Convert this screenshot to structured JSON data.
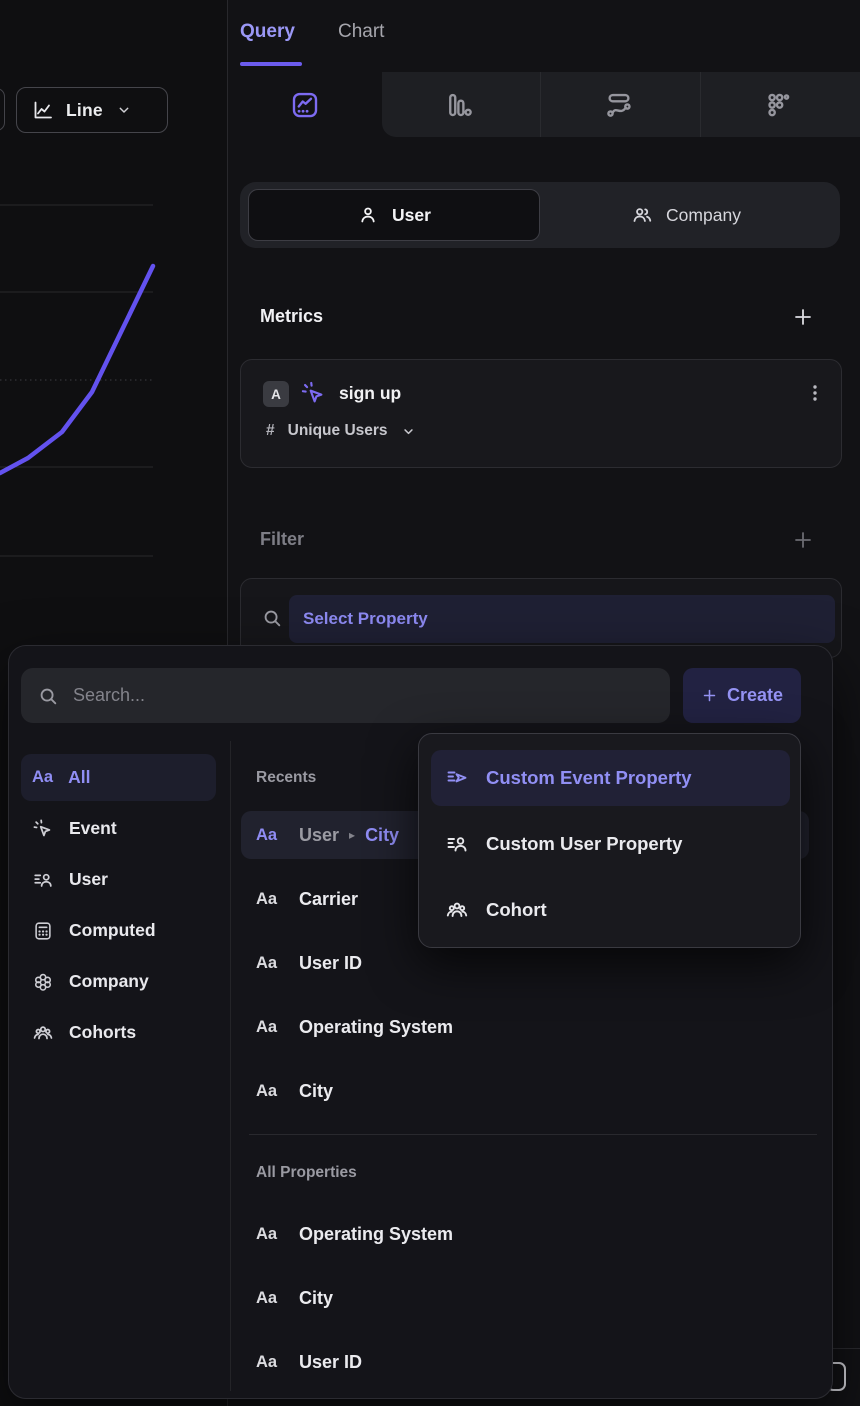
{
  "colors": {
    "accent": "#8b8af5",
    "chart_line": "#6352ef",
    "tab_underline": "#6c5cee"
  },
  "panel_tabs": {
    "query": "Query",
    "chart": "Chart"
  },
  "chart_toolbar": {
    "type_label": "Line"
  },
  "measurement_toggle": {
    "user": "User",
    "company": "Company"
  },
  "metrics_section": {
    "title": "Metrics",
    "metric": {
      "series_letter": "A",
      "event_name": "sign up",
      "aggregation_prefix": "#",
      "aggregation": "Unique Users"
    }
  },
  "filter_section": {
    "title": "Filter",
    "property_placeholder": "Select Property"
  },
  "property_picker": {
    "search_placeholder": "Search...",
    "create_label": "Create",
    "type_badge": "Aa",
    "categories": [
      {
        "label": "All",
        "icon": "aa",
        "active": true
      },
      {
        "label": "Event",
        "icon": "event"
      },
      {
        "label": "User",
        "icon": "user-property"
      },
      {
        "label": "Computed",
        "icon": "computed"
      },
      {
        "label": "Company",
        "icon": "company"
      },
      {
        "label": "Cohorts",
        "icon": "cohorts"
      }
    ],
    "recents": {
      "title": "Recents",
      "items": [
        {
          "group": "User",
          "name": "City",
          "active": true
        },
        {
          "name": "Carrier"
        },
        {
          "name": "User ID"
        },
        {
          "name": "Operating System"
        },
        {
          "name": "City"
        }
      ]
    },
    "all_properties": {
      "title": "All Properties",
      "items": [
        {
          "name": "Operating System"
        },
        {
          "name": "City"
        },
        {
          "name": "User ID"
        }
      ]
    }
  },
  "create_menu": {
    "items": [
      {
        "label": "Custom Event Property",
        "icon": "custom-event-property",
        "active": true
      },
      {
        "label": "Custom User Property",
        "icon": "custom-user-property"
      },
      {
        "label": "Cohort",
        "icon": "cohort"
      }
    ]
  }
}
